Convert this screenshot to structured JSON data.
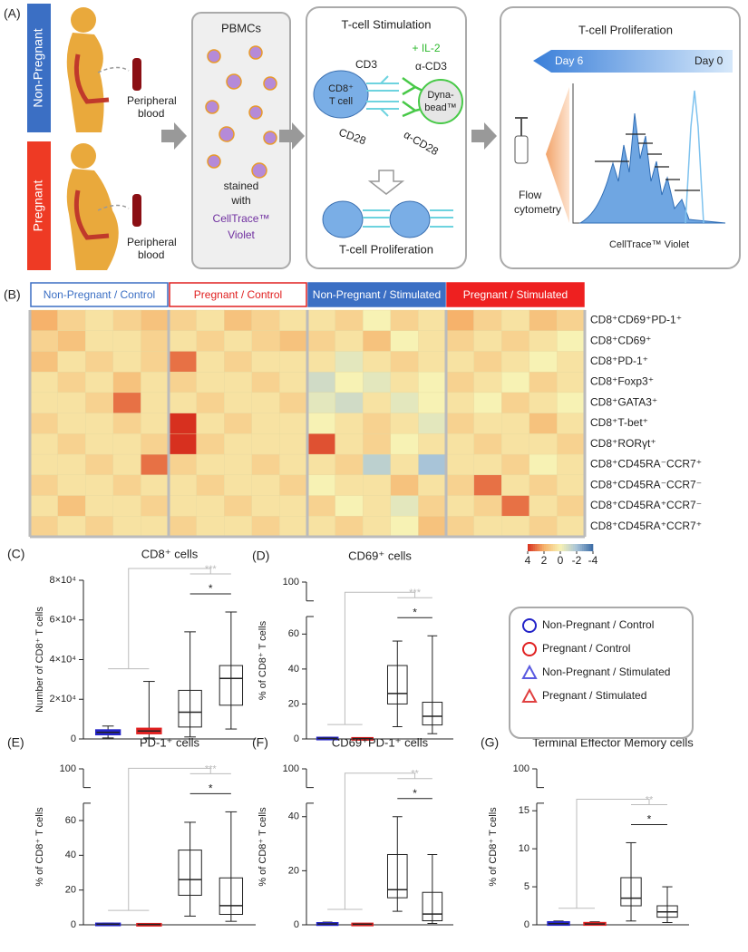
{
  "panel_a": {
    "label": "(A)",
    "non_pregnant": "Non-Pregnant",
    "pregnant": "Pregnant",
    "blood": [
      [
        "Peripheral",
        "blood"
      ],
      [
        "Peripheral",
        "blood"
      ]
    ],
    "pbmc": {
      "title": "PBMCs",
      "stain": [
        "stained",
        "with",
        "CellTrace™",
        "Violet"
      ]
    },
    "stimulation": {
      "title": "T-cell Stimulation",
      "il2": "+ IL-2",
      "cd3": "CD3",
      "cell": [
        "CD8⁺",
        "T cell"
      ],
      "acd3": "α-CD3",
      "bead": [
        "Dyna-",
        "bead™"
      ],
      "cd28": "CD28",
      "acd28": "α-CD28",
      "result": "T-cell Proliferation"
    },
    "proliferation": {
      "title": "T-cell Proliferation",
      "day_start": "Day 6",
      "day_end": "Day 0",
      "method": [
        "Flow",
        "cytometry"
      ],
      "xlabel": "CellTrace™ Violet"
    }
  },
  "heatmap": {
    "label": "(B)",
    "groups": [
      "Non-Pregnant / Control",
      "Pregnant / Control",
      "Non-Pregnant / Stimulated",
      "Pregnant / Stimulated"
    ],
    "rows": [
      "CD8⁺CD69⁺PD-1⁺",
      "CD8⁺CD69⁺",
      "CD8⁺PD-1⁺",
      "CD8⁺Foxp3⁺",
      "CD8⁺GATA3⁺",
      "CD8⁺T-bet⁺",
      "CD8⁺RORγt⁺",
      "CD8⁺CD45RA⁻CCR7⁺",
      "CD8⁺CD45RA⁻CCR7⁻",
      "CD8⁺CD45RA⁺CCR7⁻",
      "CD8⁺CD45RA⁺CCR7⁺"
    ],
    "values": [
      [
        2,
        1,
        0.5,
        1,
        1.5,
        1,
        0.5,
        1.5,
        1,
        0.5,
        0.5,
        1,
        0,
        1,
        0.5,
        2,
        1,
        0.5,
        1.5,
        1
      ],
      [
        1,
        1.5,
        0.5,
        0.5,
        1,
        0.5,
        1,
        0.5,
        1,
        1.5,
        1,
        0.5,
        1.5,
        0,
        0.5,
        1,
        0.5,
        1,
        0.5,
        0
      ],
      [
        1.5,
        0.5,
        1,
        0.5,
        1,
        3,
        0.5,
        1,
        0.5,
        0.5,
        0.5,
        -0.5,
        0.5,
        1,
        0.5,
        0.5,
        1,
        0.5,
        0,
        0.5
      ],
      [
        0.5,
        1,
        0.5,
        1.5,
        0.5,
        1,
        0.5,
        0.5,
        1,
        0.5,
        -1,
        0,
        -0.5,
        0.5,
        0,
        1,
        0.5,
        0,
        1,
        0.5
      ],
      [
        0.5,
        0.5,
        1,
        3,
        0.5,
        0.5,
        1,
        0.5,
        0.5,
        1,
        -0.5,
        -1,
        0.5,
        -0.5,
        0,
        0.5,
        0,
        1,
        0.5,
        0
      ],
      [
        1,
        0.5,
        0.5,
        1,
        0.5,
        4,
        0.5,
        1,
        0.5,
        0.5,
        0,
        0.5,
        1,
        0.5,
        -0.5,
        1,
        0.5,
        0.5,
        1.5,
        0.5
      ],
      [
        0.5,
        1,
        0.5,
        0.5,
        1,
        4,
        1,
        0.5,
        0.5,
        0.5,
        3.5,
        0.5,
        1,
        0,
        0.5,
        0.5,
        1,
        0.5,
        0.5,
        1
      ],
      [
        0.5,
        0.5,
        1,
        0.5,
        3,
        1,
        0.5,
        0.5,
        1,
        0.5,
        0.5,
        1,
        -1.5,
        0.5,
        -2,
        0.5,
        0.5,
        1,
        0,
        0.5
      ],
      [
        1,
        0.5,
        0.5,
        1,
        0.5,
        0.5,
        1,
        0.5,
        0.5,
        1,
        0,
        0.5,
        0.5,
        1.5,
        0.5,
        1,
        3,
        0.5,
        1,
        0.5
      ],
      [
        0.5,
        1.5,
        0.5,
        0.5,
        1,
        0.5,
        0.5,
        1,
        0.5,
        0.5,
        1,
        0,
        0.5,
        -0.5,
        1,
        0.5,
        1,
        3,
        0.5,
        1
      ],
      [
        1,
        0.5,
        1,
        0.5,
        0.5,
        1,
        0.5,
        0.5,
        1,
        0.5,
        0.5,
        1,
        0.5,
        0,
        1.5,
        1,
        0.5,
        0.5,
        1,
        0.5
      ]
    ],
    "colorbar": [
      4,
      2,
      0,
      -2,
      -4
    ]
  },
  "legend": {
    "entries": [
      {
        "name": "Non-Pregnant / Control",
        "color": "#2424c8",
        "marker": "circle"
      },
      {
        "name": "Pregnant / Control",
        "color": "#e02020",
        "marker": "circle"
      },
      {
        "name": "Non-Pregnant / Stimulated",
        "color": "#5a5ae0",
        "marker": "triangle"
      },
      {
        "name": "Pregnant / Stimulated",
        "color": "#e04040",
        "marker": "triangle"
      }
    ]
  },
  "chart_data": [
    {
      "type": "box",
      "label": "(C)",
      "title": "CD8⁺ cells",
      "ylabel": "Number of CD8⁺ T cells",
      "ylim": [
        0,
        80000
      ],
      "yticks": [
        0,
        {
          "value": 20000,
          "label": "2×10⁴"
        },
        {
          "value": 40000,
          "label": "4×10⁴"
        },
        {
          "value": 60000,
          "label": "6×10⁴"
        },
        {
          "value": 80000,
          "label": "8×10⁴"
        }
      ],
      "boxes": [
        {
          "min": 500,
          "q1": 2500,
          "median": 3300,
          "q3": 4200,
          "max": 6500
        },
        {
          "min": 500,
          "q1": 3000,
          "median": 4000,
          "q3": 5000,
          "max": 29000
        },
        {
          "min": 1000,
          "q1": 6000,
          "median": 13500,
          "q3": 24500,
          "max": 54000
        },
        {
          "min": 5000,
          "q1": 17000,
          "median": 30500,
          "q3": 37000,
          "max": 64000
        }
      ],
      "significance": [
        "***",
        "*"
      ]
    },
    {
      "type": "box",
      "label": "(D)",
      "title": "CD69⁺ cells",
      "ylabel": "% of CD8⁺ T cells",
      "ylim": [
        0,
        100
      ],
      "ybreak": [
        70,
        95
      ],
      "yticks": [
        0,
        20,
        40,
        60,
        100
      ],
      "boxes": [
        {
          "min": 0,
          "q1": 0.1,
          "median": 0.3,
          "q3": 0.5,
          "max": 1
        },
        {
          "min": 0,
          "q1": 0.1,
          "median": 0.2,
          "q3": 0.3,
          "max": 0.5
        },
        {
          "min": 7,
          "q1": 20,
          "median": 26,
          "q3": 42,
          "max": 56
        },
        {
          "min": 3,
          "q1": 8,
          "median": 13,
          "q3": 21,
          "max": 59
        }
      ],
      "significance": [
        "***",
        "*"
      ]
    },
    {
      "type": "box",
      "label": "(E)",
      "title": "PD-1⁺ cells",
      "ylabel": "% of CD8⁺ T cells",
      "ylim": [
        0,
        100
      ],
      "ybreak": [
        70,
        95
      ],
      "yticks": [
        0,
        20,
        40,
        60,
        100
      ],
      "boxes": [
        {
          "min": 0,
          "q1": 0.1,
          "median": 0.3,
          "q3": 0.5,
          "max": 1
        },
        {
          "min": 0,
          "q1": 0.1,
          "median": 0.2,
          "q3": 0.3,
          "max": 0.5
        },
        {
          "min": 5,
          "q1": 17,
          "median": 26,
          "q3": 43,
          "max": 59
        },
        {
          "min": 2,
          "q1": 6,
          "median": 11,
          "q3": 27,
          "max": 65
        }
      ],
      "significance": [
        "***",
        "*"
      ]
    },
    {
      "type": "box",
      "label": "(F)",
      "title": "CD69⁺PD-1⁺ cells",
      "ylabel": "% of CD8⁺ T cells",
      "ylim": [
        0,
        100
      ],
      "ybreak": [
        45,
        95
      ],
      "yticks": [
        0,
        20,
        40,
        100
      ],
      "boxes": [
        {
          "min": 0,
          "q1": 0.1,
          "median": 0.3,
          "q3": 0.5,
          "max": 1
        },
        {
          "min": 0,
          "q1": 0.1,
          "median": 0.2,
          "q3": 0.3,
          "max": 0.5
        },
        {
          "min": 5,
          "q1": 10,
          "median": 13,
          "q3": 26,
          "max": 40
        },
        {
          "min": 0.5,
          "q1": 1.5,
          "median": 4,
          "q3": 12,
          "max": 26
        }
      ],
      "significance": [
        "**",
        "*"
      ]
    },
    {
      "type": "box",
      "label": "(G)",
      "title": "Terminal Effector Memory cells",
      "ylabel": "% of CD8⁺ T cells",
      "ylim": [
        0,
        100
      ],
      "ybreak": [
        16,
        95
      ],
      "yticks": [
        0,
        5,
        10,
        15,
        100
      ],
      "boxes": [
        {
          "min": 0,
          "q1": 0.05,
          "median": 0.15,
          "q3": 0.3,
          "max": 0.5
        },
        {
          "min": 0,
          "q1": 0.05,
          "median": 0.1,
          "q3": 0.2,
          "max": 0.4
        },
        {
          "min": 0.5,
          "q1": 2.5,
          "median": 3.5,
          "q3": 6.2,
          "max": 10.8
        },
        {
          "min": 0.3,
          "q1": 1,
          "median": 1.7,
          "q3": 2.5,
          "max": 5
        }
      ],
      "significance": [
        "**",
        "*"
      ]
    }
  ]
}
